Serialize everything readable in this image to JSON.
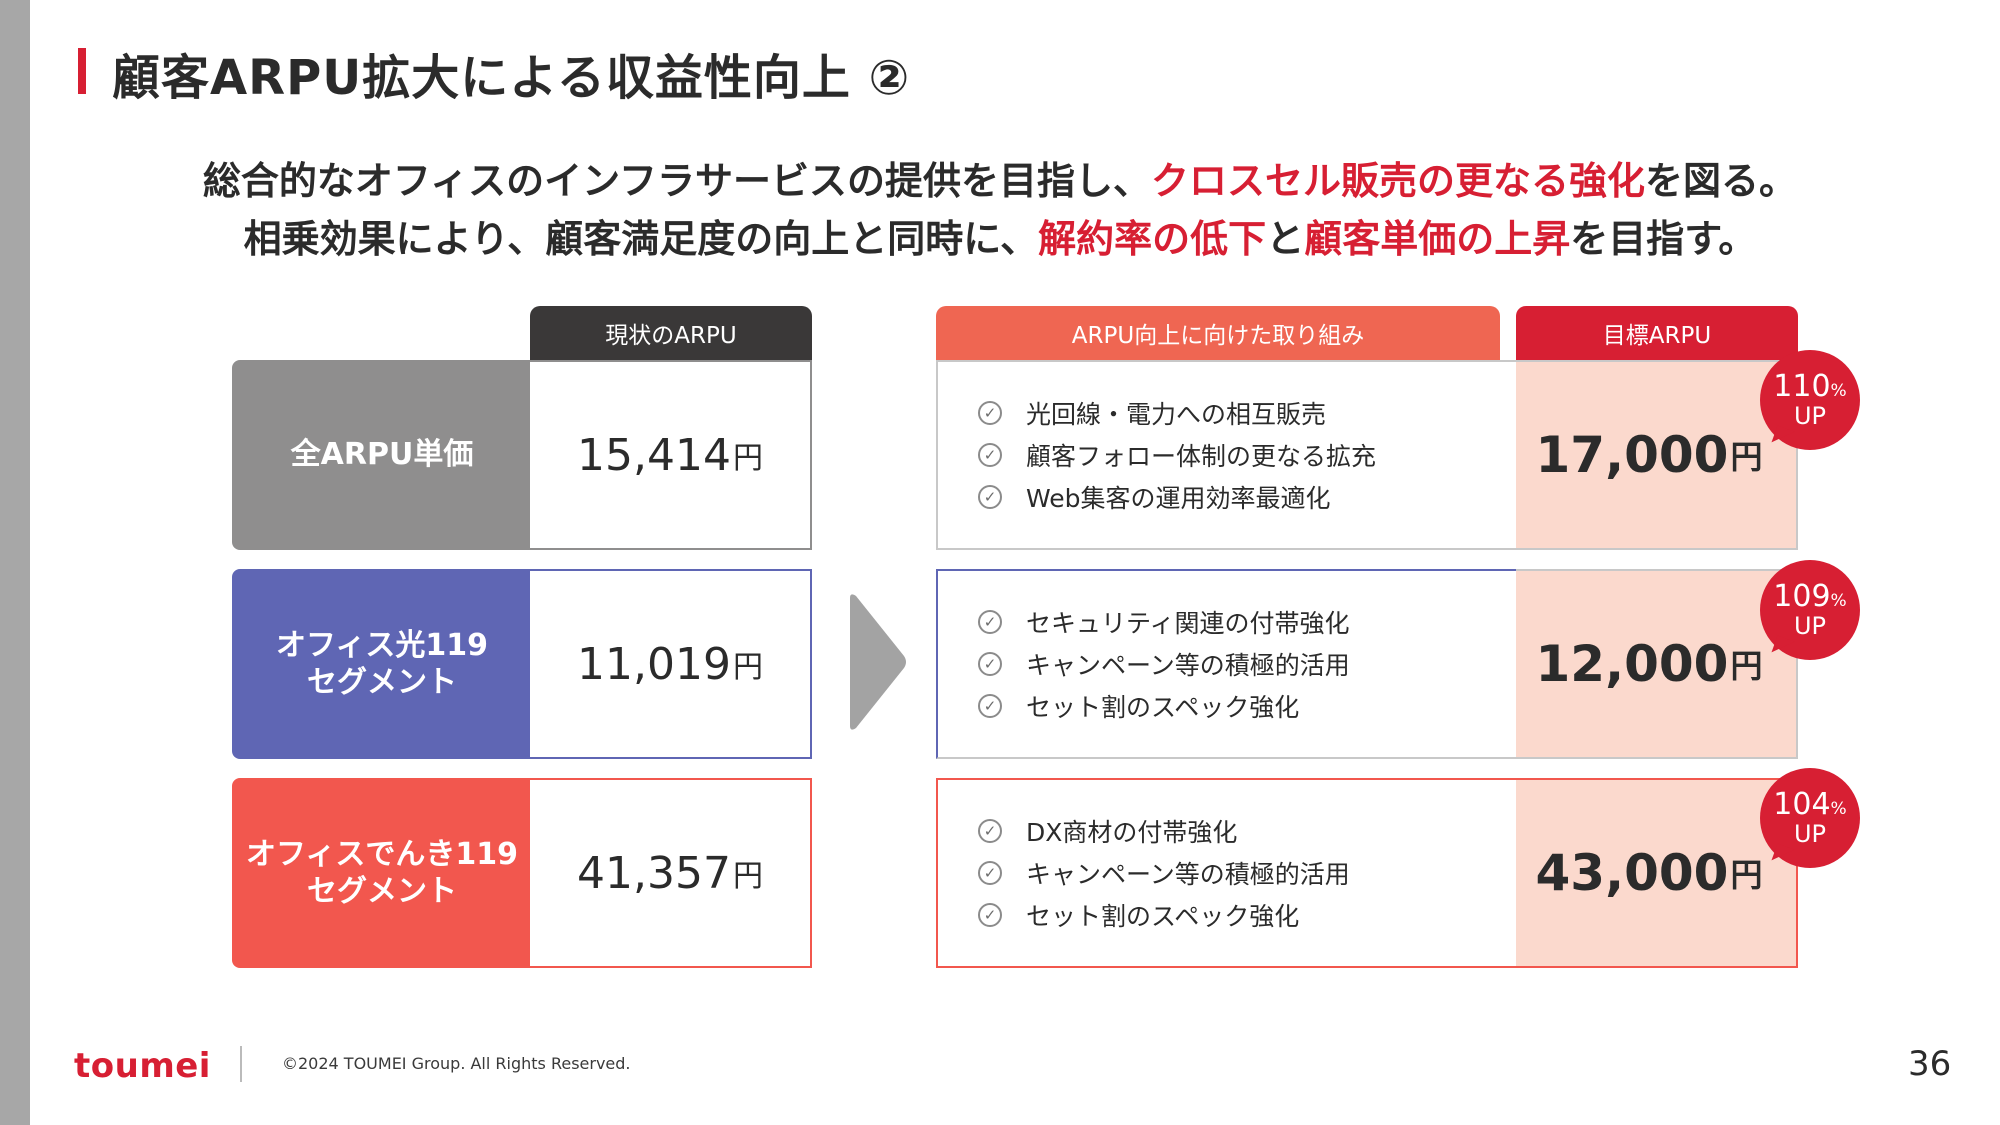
{
  "title": "顧客ARPU拡大による収益性向上 ②",
  "lead": {
    "line1_a": "総合的なオフィスのインフラサービスの提供を目指し、",
    "line1_hl": "クロスセル販売の更なる強化",
    "line1_b": "を図る。",
    "line2_a": "相乗効果により、顧客満足度の向上と同時に、",
    "line2_hl1": "解約率の低下",
    "line2_mid": "と",
    "line2_hl2": "顧客単価の上昇",
    "line2_b": "を目指す。"
  },
  "headers": {
    "current": "現状のARPU",
    "action": "ARPU向上に向けた取り組み",
    "target": "目標ARPU"
  },
  "unit": "円",
  "rows": [
    {
      "label": "全ARPU単価",
      "color": "#8f8e8e",
      "current": "15,414",
      "actions": [
        "光回線・電力への相互販売",
        "顧客フォロー体制の更なる拡充",
        "Web集客の運用効率最適化"
      ],
      "target": "17,000",
      "pct": "110",
      "pct_unit": "%",
      "up": "UP"
    },
    {
      "label_l1": "オフィス光119",
      "label_l2": "セグメント",
      "color": "#5f66b4",
      "current": "11,019",
      "actions": [
        "セキュリティ関連の付帯強化",
        "キャンペーン等の積極的活用",
        "セット割のスペック強化"
      ],
      "target": "12,000",
      "pct": "109",
      "pct_unit": "%",
      "up": "UP"
    },
    {
      "label_l1": "オフィスでんき119",
      "label_l2": "セグメント",
      "color": "#f2574e",
      "current": "41,357",
      "actions": [
        "DX商材の付帯強化",
        "キャンペーン等の積極的活用",
        "セット割のスペック強化"
      ],
      "target": "43,000",
      "pct": "104",
      "pct_unit": "%",
      "up": "UP"
    }
  ],
  "footer": {
    "logo": "toumei",
    "copyright": "©2024 TOUMEI Group. All Rights Reserved.",
    "page": "36"
  },
  "colors": {
    "accent": "#d71f33",
    "action_header": "#ef6652",
    "dark_header": "#3a3838",
    "target_bg": "#fbd9cd"
  }
}
